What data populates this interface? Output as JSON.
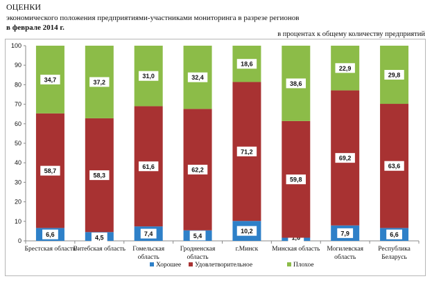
{
  "header": {
    "title": "ОЦЕНКИ",
    "subtitle": "экономического положения предприятиями-участниками мониторинга в разрезе регионов",
    "period": "в феврале 2014 г.",
    "unit_note": "в процентах к общему количеству предприятий"
  },
  "chart_data": {
    "type": "bar",
    "stacked": true,
    "title": "ОЦЕНКИ экономического положения предприятиями-участниками мониторинга в разрезе регионов в феврале 2014 г.",
    "xlabel": "",
    "ylabel": "в процентах к общему количеству предприятий",
    "ylim": [
      0,
      100
    ],
    "yticks": [
      0,
      10,
      20,
      30,
      40,
      50,
      60,
      70,
      80,
      90,
      100
    ],
    "grid": false,
    "legend_position": "bottom",
    "categories": [
      [
        "Брестская область"
      ],
      [
        "Витебская область"
      ],
      [
        "Гомельская",
        "область"
      ],
      [
        "Гродненская",
        "область"
      ],
      [
        "г.Минск"
      ],
      [
        "Минская область"
      ],
      [
        "Могилевская",
        "область"
      ],
      [
        "Республика",
        "Беларусь"
      ]
    ],
    "series": [
      {
        "name": "Хорошее",
        "color": "#2e80c8",
        "values": [
          6.6,
          4.5,
          7.4,
          5.4,
          10.2,
          1.6,
          7.9,
          6.6
        ],
        "labels": [
          "6,6",
          "4,5",
          "7,4",
          "5,4",
          "10,2",
          "1,6",
          "7,9",
          "6,6"
        ]
      },
      {
        "name": "Удовлетворительное",
        "color": "#a83232",
        "values": [
          58.7,
          58.3,
          61.6,
          62.2,
          71.2,
          59.8,
          69.2,
          63.6
        ],
        "labels": [
          "58,7",
          "58,3",
          "61,6",
          "62,2",
          "71,2",
          "59,8",
          "69,2",
          "63,6"
        ]
      },
      {
        "name": "Плохое",
        "color": "#8cbc48",
        "values": [
          34.7,
          37.2,
          31.0,
          32.4,
          18.6,
          38.6,
          22.9,
          29.8
        ],
        "labels": [
          "34,7",
          "37,2",
          "31,0",
          "32,4",
          "18,6",
          "38,6",
          "22,9",
          "29,8"
        ]
      }
    ]
  }
}
